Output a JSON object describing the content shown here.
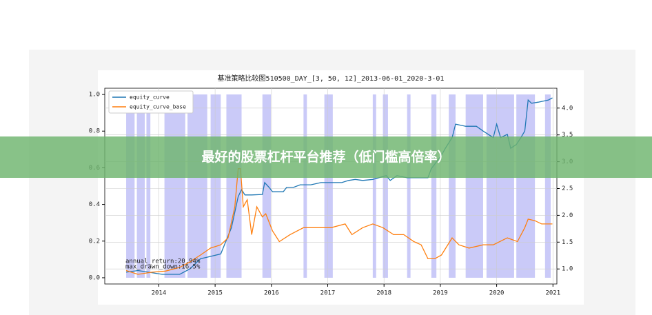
{
  "banner": "最好的股票杠杆平台推荐（低门槛高倍率）",
  "chart_data": {
    "type": "line",
    "title": "基准策略比较图510500_DAY_[3, 50, 12]_2013-06-01_2020-3-01",
    "xlim": [
      2013.04,
      2021.07
    ],
    "xticks": [
      2014,
      2015,
      2016,
      2017,
      2018,
      2019,
      2020,
      2021
    ],
    "ylim": [
      -0.034,
      1.034
    ],
    "yticks": [
      {
        "value": 0,
        "label": "0.0"
      },
      0.2,
      0.4,
      0.6,
      0.8,
      {
        "value": 1,
        "label": "1.0"
      }
    ],
    "y2lim": [
      0.72,
      4.37
    ],
    "y2ticks": [
      {
        "value": 1,
        "label": "1.0"
      },
      1.5,
      {
        "value": 2,
        "label": "2.0"
      },
      2.5,
      {
        "value": 3,
        "label": "3.0"
      },
      3.5,
      {
        "value": 4,
        "label": "4.0"
      }
    ],
    "grid": true,
    "legend": "upper left",
    "shade_color": "#b8b8f5",
    "shaded_spans": [
      [
        2013.42,
        2013.57
      ],
      [
        2013.61,
        2013.75
      ],
      [
        2013.78,
        2013.85
      ],
      [
        2014.1,
        2014.47
      ],
      [
        2014.51,
        2014.86
      ],
      [
        2014.92,
        2015.1
      ],
      [
        2015.2,
        2015.47
      ],
      [
        2015.84,
        2015.99
      ],
      [
        2016.57,
        2016.63
      ],
      [
        2016.94,
        2017.09
      ],
      [
        2017.8,
        2017.86
      ],
      [
        2017.98,
        2018.07
      ],
      [
        2018.41,
        2018.47
      ],
      [
        2018.84,
        2018.93
      ],
      [
        2019.15,
        2019.27
      ],
      [
        2019.45,
        2019.76
      ],
      [
        2019.82,
        2020.31
      ],
      [
        2020.35,
        2020.68
      ],
      [
        2020.86,
        2020.96
      ]
    ],
    "annotations": [
      "annual_return:20.94%",
      "max_drawn_down:16.5%"
    ],
    "series": [
      {
        "name": "equity_curve",
        "color": "#1f77b4",
        "axis": "y2",
        "x": [
          2013.42,
          2013.63,
          2013.82,
          2014.06,
          2014.37,
          2014.55,
          2014.74,
          2014.86,
          2015.1,
          2015.29,
          2015.41,
          2015.47,
          2015.53,
          2015.65,
          2015.84,
          2015.88,
          2015.96,
          2016.02,
          2016.21,
          2016.27,
          2016.39,
          2016.51,
          2016.7,
          2016.88,
          2017.06,
          2017.25,
          2017.37,
          2017.49,
          2017.62,
          2017.8,
          2018.04,
          2018.11,
          2018.23,
          2018.41,
          2018.53,
          2018.78,
          2018.84,
          2019.02,
          2019.09,
          2019.21,
          2019.27,
          2019.45,
          2019.64,
          2019.76,
          2019.94,
          2020.0,
          2020.07,
          2020.19,
          2020.25,
          2020.35,
          2020.43,
          2020.5,
          2020.56,
          2020.62,
          2020.74,
          2020.92,
          2020.99
        ],
        "values": [
          0.94,
          0.97,
          0.94,
          0.9,
          0.9,
          1.0,
          1.19,
          1.22,
          1.28,
          1.77,
          2.35,
          2.48,
          2.38,
          2.38,
          2.39,
          2.61,
          2.52,
          2.44,
          2.44,
          2.52,
          2.52,
          2.57,
          2.57,
          2.61,
          2.61,
          2.61,
          2.65,
          2.67,
          2.65,
          2.67,
          2.74,
          2.65,
          2.74,
          2.7,
          2.7,
          2.7,
          2.87,
          3.12,
          3.25,
          3.45,
          3.7,
          3.66,
          3.66,
          3.57,
          3.45,
          3.7,
          3.45,
          3.51,
          3.25,
          3.32,
          3.45,
          3.57,
          4.15,
          4.09,
          4.11,
          4.15,
          4.19
        ]
      },
      {
        "name": "equity_curve_base",
        "color": "#ff7f0e",
        "axis": "y2",
        "x": [
          2013.42,
          2013.63,
          2013.88,
          2014.12,
          2014.37,
          2014.55,
          2014.74,
          2014.92,
          2015.1,
          2015.23,
          2015.35,
          2015.41,
          2015.45,
          2015.5,
          2015.57,
          2015.65,
          2015.74,
          2015.84,
          2015.9,
          2016.02,
          2016.14,
          2016.33,
          2016.57,
          2016.82,
          2017.06,
          2017.31,
          2017.43,
          2017.62,
          2017.8,
          2017.98,
          2018.17,
          2018.35,
          2018.53,
          2018.66,
          2018.78,
          2018.9,
          2019.02,
          2019.21,
          2019.33,
          2019.51,
          2019.76,
          2019.94,
          2020.19,
          2020.37,
          2020.5,
          2020.56,
          2020.68,
          2020.8,
          2020.99
        ],
        "values": [
          0.97,
          0.9,
          0.94,
          0.96,
          1.03,
          1.13,
          1.26,
          1.39,
          1.45,
          1.58,
          2.16,
          2.87,
          2.87,
          2.16,
          2.29,
          1.64,
          2.16,
          1.97,
          2.03,
          1.71,
          1.51,
          1.64,
          1.77,
          1.77,
          1.77,
          1.84,
          1.64,
          1.77,
          1.84,
          1.77,
          1.64,
          1.64,
          1.51,
          1.45,
          1.19,
          1.19,
          1.26,
          1.58,
          1.45,
          1.39,
          1.45,
          1.45,
          1.58,
          1.51,
          1.77,
          1.93,
          1.9,
          1.84,
          1.84
        ]
      }
    ]
  }
}
